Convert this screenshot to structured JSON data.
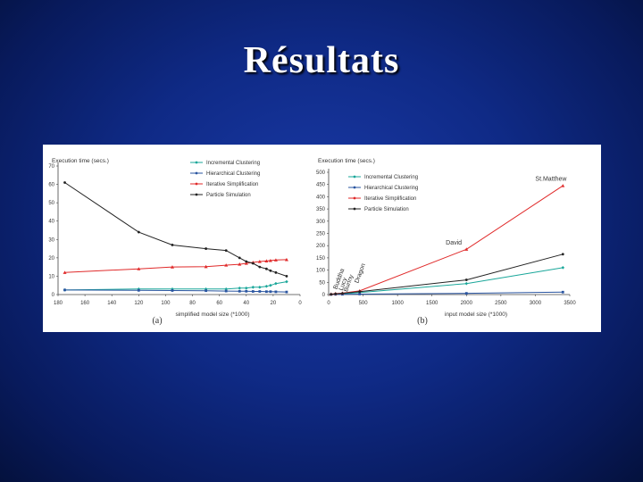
{
  "slide": {
    "title": "Résultats"
  },
  "colors": {
    "incremental": "#1aa79a",
    "hierarchical": "#2a55a0",
    "iterative": "#e02a2a",
    "particle": "#222222"
  },
  "chart_data": [
    {
      "type": "line",
      "panel_label": "(a)",
      "ylabel": "Execution time (secs.)",
      "xlabel": "simplified model size (*1000)",
      "xlim": [
        180,
        0
      ],
      "ylim": [
        0,
        70
      ],
      "xticks": [
        "180",
        "160",
        "140",
        "120",
        "100",
        "80",
        "60",
        "40",
        "20",
        "0"
      ],
      "yticks": [
        "0",
        "10",
        "20",
        "30",
        "40",
        "50",
        "60",
        "70"
      ],
      "legend": [
        "Incremental Clustering",
        "Hierarchical Clustering",
        "Iterative Simplification",
        "Particle Simulation"
      ],
      "series": [
        {
          "name": "Incremental Clustering",
          "key": "incremental",
          "x": [
            175,
            120,
            95,
            70,
            55,
            45,
            40,
            35,
            30,
            25,
            22,
            18,
            10
          ],
          "y": [
            2.5,
            3,
            3,
            3,
            3,
            3.5,
            3.5,
            4,
            4,
            4.5,
            5,
            6,
            7
          ]
        },
        {
          "name": "Hierarchical Clustering",
          "key": "hierarchical",
          "x": [
            175,
            120,
            95,
            70,
            55,
            45,
            40,
            35,
            30,
            25,
            22,
            18,
            10
          ],
          "y": [
            2.5,
            2.3,
            2.2,
            2.1,
            1.9,
            1.8,
            1.8,
            1.7,
            1.7,
            1.6,
            1.6,
            1.5,
            1.4
          ]
        },
        {
          "name": "Iterative Simplification",
          "key": "iterative",
          "x": [
            175,
            120,
            95,
            70,
            55,
            45,
            40,
            35,
            30,
            25,
            22,
            18,
            10
          ],
          "y": [
            12,
            14,
            15,
            15.2,
            16,
            16.5,
            17,
            17.5,
            18,
            18.3,
            18.5,
            18.8,
            19
          ]
        },
        {
          "name": "Particle Simulation",
          "key": "particle",
          "x": [
            175,
            120,
            95,
            70,
            55,
            45,
            40,
            35,
            30,
            25,
            22,
            18,
            10
          ],
          "y": [
            61,
            34,
            27,
            25,
            24,
            20,
            18,
            17,
            15,
            14,
            13,
            12,
            10
          ]
        }
      ]
    },
    {
      "type": "line",
      "panel_label": "(b)",
      "ylabel": "Execution time (secs.)",
      "xlabel": "input model size (*1000)",
      "xlim": [
        0,
        3500
      ],
      "ylim": [
        0,
        500
      ],
      "xticks": [
        "0",
        "500",
        "1000",
        "1500",
        "2000",
        "2500",
        "3000",
        "3500"
      ],
      "yticks": [
        "0",
        "50",
        "100",
        "150",
        "200",
        "250",
        "300",
        "350",
        "400",
        "450",
        "500"
      ],
      "legend": [
        "Incremental Clustering",
        "Hierarchical Clustering",
        "Iterative Simplification",
        "Particle Simulation"
      ],
      "annotations": [
        "St.Matthew",
        "David",
        "Dragon",
        "Buddha",
        "Lucy",
        "Bunny"
      ],
      "series": [
        {
          "name": "Incremental Clustering",
          "key": "incremental",
          "x": [
            35,
            100,
            200,
            450,
            2000,
            3400
          ],
          "y": [
            1,
            2,
            3,
            8,
            45,
            110
          ]
        },
        {
          "name": "Hierarchical Clustering",
          "key": "hierarchical",
          "x": [
            35,
            100,
            200,
            450,
            2000,
            3400
          ],
          "y": [
            0.5,
            0.8,
            1,
            2,
            5,
            10
          ]
        },
        {
          "name": "Iterative Simplification",
          "key": "iterative",
          "x": [
            35,
            100,
            200,
            450,
            2000,
            3400
          ],
          "y": [
            2,
            4,
            6,
            15,
            185,
            445
          ]
        },
        {
          "name": "Particle Simulation",
          "key": "particle",
          "x": [
            35,
            100,
            200,
            450,
            2000,
            3400
          ],
          "y": [
            1,
            3,
            5,
            12,
            60,
            165
          ]
        }
      ]
    }
  ]
}
